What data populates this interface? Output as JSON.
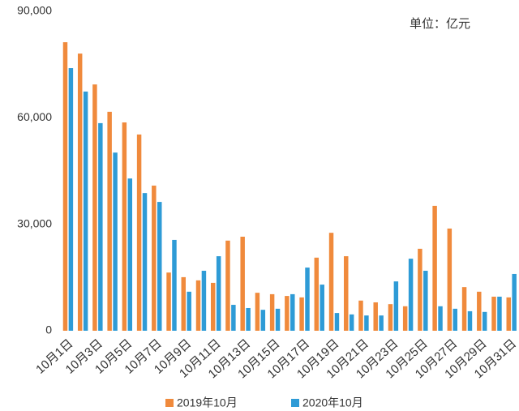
{
  "chart_data": {
    "type": "bar",
    "annotation": "单位：亿元",
    "categories": [
      "10月1日",
      null,
      "10月3日",
      null,
      "10月5日",
      null,
      "10月7日",
      null,
      "10月9日",
      null,
      "10月11日",
      null,
      "10月13日",
      null,
      "10月15日",
      null,
      "10月17日",
      null,
      "10月19日",
      null,
      "10月21日",
      null,
      "10月23日",
      null,
      "10月25日",
      null,
      "10月27日",
      null,
      "10月29日",
      null,
      "10月31日"
    ],
    "series": [
      {
        "name": "2019年10月",
        "color": "#f08a3c",
        "values": [
          81300,
          78100,
          69400,
          61700,
          58700,
          55300,
          40900,
          16400,
          15100,
          14200,
          13500,
          25400,
          26500,
          10700,
          10300,
          9800,
          9400,
          20600,
          27600,
          21000,
          8500,
          8000,
          7500,
          6900,
          23100,
          35200,
          28800,
          12300,
          11000,
          9600,
          9400
        ]
      },
      {
        "name": "2020年10月",
        "color": "#2e9bd6",
        "values": [
          74000,
          67400,
          58500,
          50200,
          42900,
          38800,
          36300,
          25600,
          11000,
          16900,
          21000,
          7300,
          6400,
          5900,
          6200,
          10300,
          17800,
          13000,
          5000,
          4600,
          4300,
          4300,
          13900,
          20300,
          16900,
          6900,
          6200,
          5500,
          5300,
          9600,
          16000
        ]
      }
    ],
    "ylim": [
      0,
      90000
    ],
    "yticks": [
      0,
      {
        "value": 30000,
        "label": "30,000"
      },
      {
        "value": 60000,
        "label": "60,000"
      },
      {
        "value": 90000,
        "label": "90,000"
      }
    ],
    "legend": "bottom",
    "grid": false
  }
}
